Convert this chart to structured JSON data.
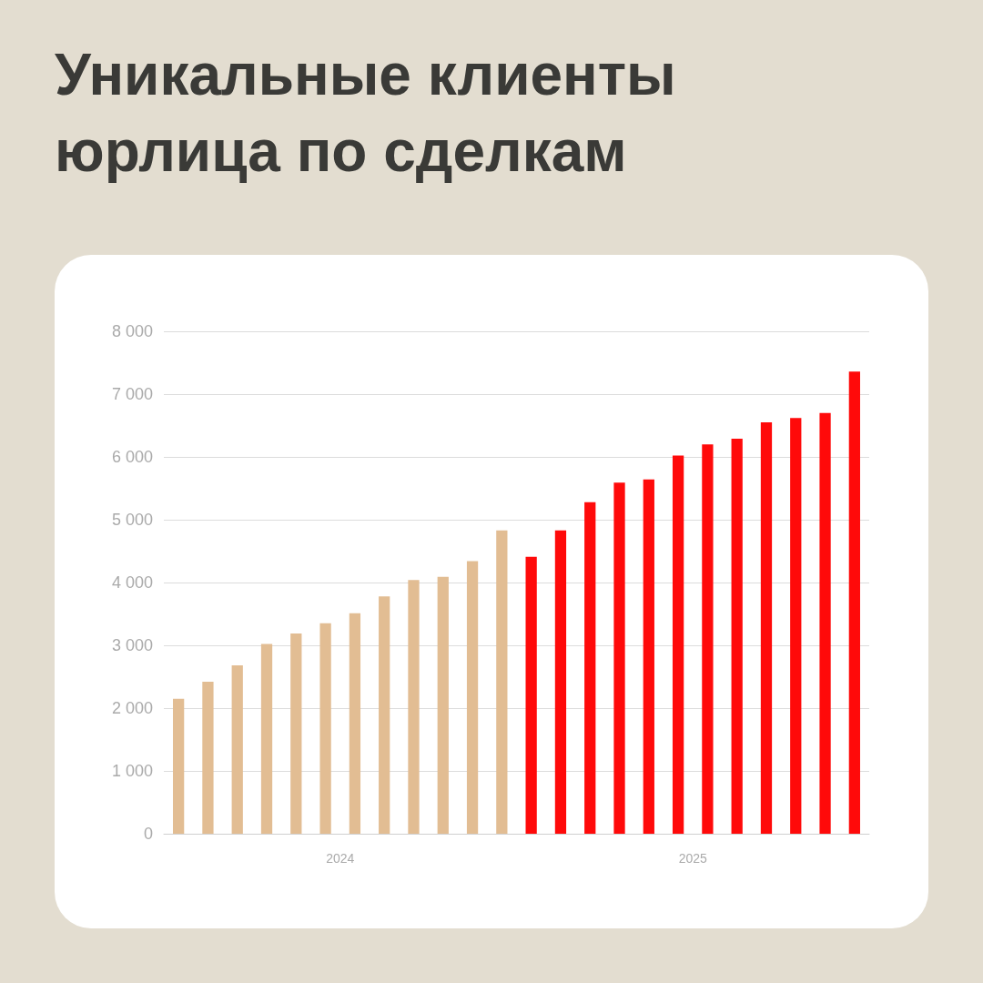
{
  "chart_data": {
    "type": "bar",
    "title": "Уникальные клиенты юрлица по сделкам",
    "categories": [
      null,
      null,
      null,
      null,
      null,
      "2024",
      null,
      null,
      null,
      null,
      null,
      null,
      null,
      null,
      null,
      null,
      null,
      "2025",
      null,
      null,
      null,
      null,
      null,
      null
    ],
    "values": [
      2150,
      2420,
      2680,
      3020,
      3190,
      3350,
      3510,
      3780,
      4040,
      4090,
      4340,
      4830,
      4410,
      4830,
      5280,
      5590,
      5640,
      6020,
      6200,
      6290,
      6550,
      6620,
      6700,
      7360
    ],
    "colors": [
      "#e2bd93",
      "#e2bd93",
      "#e2bd93",
      "#e2bd93",
      "#e2bd93",
      "#e2bd93",
      "#e2bd93",
      "#e2bd93",
      "#e2bd93",
      "#e2bd93",
      "#e2bd93",
      "#e2bd93",
      "#ff0a0a",
      "#ff0a0a",
      "#ff0a0a",
      "#ff0a0a",
      "#ff0a0a",
      "#ff0a0a",
      "#ff0a0a",
      "#ff0a0a",
      "#ff0a0a",
      "#ff0a0a",
      "#ff0a0a",
      "#ff0a0a"
    ],
    "ylim": [
      0,
      8000
    ],
    "yticks": [
      {
        "value": 0,
        "label": "0"
      },
      {
        "value": 1000,
        "label": "1 000"
      },
      {
        "value": 2000,
        "label": "2 000"
      },
      {
        "value": 3000,
        "label": "3 000"
      },
      {
        "value": 4000,
        "label": "4 000"
      },
      {
        "value": 5000,
        "label": "5 000"
      },
      {
        "value": 6000,
        "label": "6 000"
      },
      {
        "value": 7000,
        "label": "7 000"
      },
      {
        "value": 8000,
        "label": "8 000"
      }
    ],
    "grid": "y"
  }
}
